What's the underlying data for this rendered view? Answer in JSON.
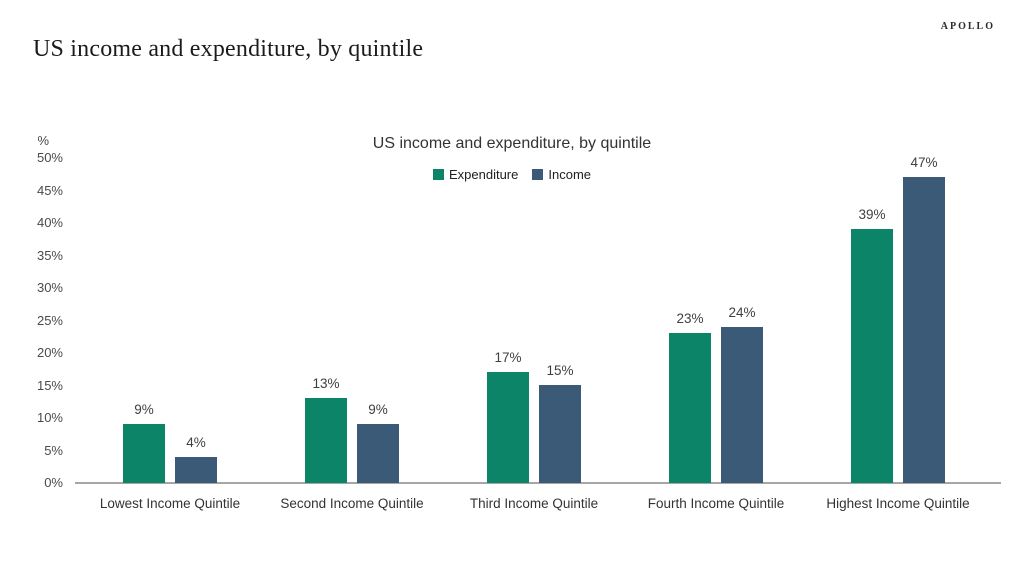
{
  "page": {
    "title": "US income and expenditure, by quintile",
    "logo": "APOLLO"
  },
  "chart_data": {
    "type": "bar",
    "title": "US income and expenditure, by quintile",
    "unit_label": "%",
    "value_suffix": "%",
    "categories": [
      "Lowest Income Quintile",
      "Second Income Quintile",
      "Third Income Quintile",
      "Fourth Income Quintile",
      "Highest Income Quintile"
    ],
    "series": [
      {
        "name": "Expenditure",
        "color": "#0B8467",
        "values": [
          9,
          13,
          17,
          23,
          39
        ]
      },
      {
        "name": "Income",
        "color": "#3B5A77",
        "values": [
          4,
          9,
          15,
          24,
          47
        ]
      }
    ],
    "ylim": [
      0,
      50
    ],
    "ytick_step": 5,
    "grid": false,
    "legend_position": "top-center",
    "colors": {
      "axis_line": "#A6A6A6",
      "label_text": "#3F3F3F",
      "tick_text": "#4A4A4A"
    }
  }
}
